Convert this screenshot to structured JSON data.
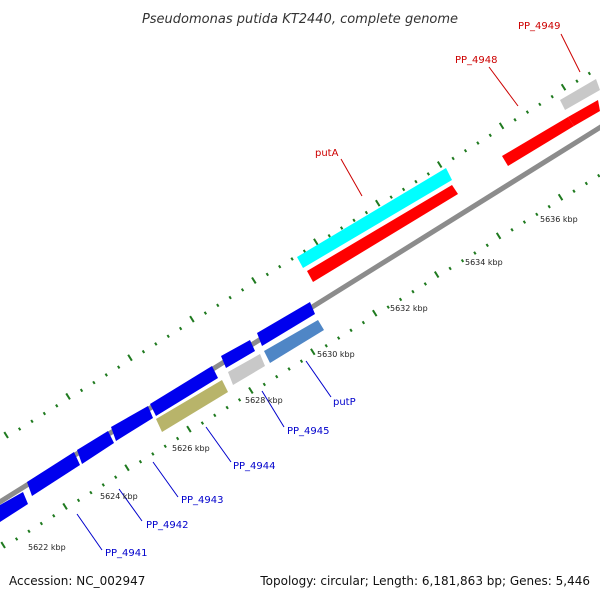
{
  "title": "Pseudomonas putida KT2440, complete genome",
  "footer": {
    "accession": "Accession: NC_002947",
    "topology": "Topology: circular; Length: 6,181,863 bp; Genes: 5,446"
  },
  "colors": {
    "backbone": "#8c8c8c",
    "tick": "#1f7a1f",
    "forward_cds": "#ff0000",
    "reverse_cds": "#0000ee",
    "gray_gene": "#c8c8c8",
    "cyan_gene": "#00ffff",
    "olive_gene": "#b8b46a",
    "steel_gene": "#4f86c6",
    "label_red": "#cc0000",
    "label_blue": "#0000cc"
  },
  "kbp_labels": [
    "5622 kbp",
    "5624 kbp",
    "5626 kbp",
    "5628 kbp",
    "5630 kbp",
    "5632 kbp",
    "5634 kbp",
    "5636 kbp"
  ],
  "gene_labels": {
    "top": [
      "PP_4949",
      "PP_4948",
      "putA"
    ],
    "bottom": [
      "putP",
      "PP_4945",
      "PP_4944",
      "PP_4943",
      "PP_4942",
      "PP_4941"
    ]
  }
}
